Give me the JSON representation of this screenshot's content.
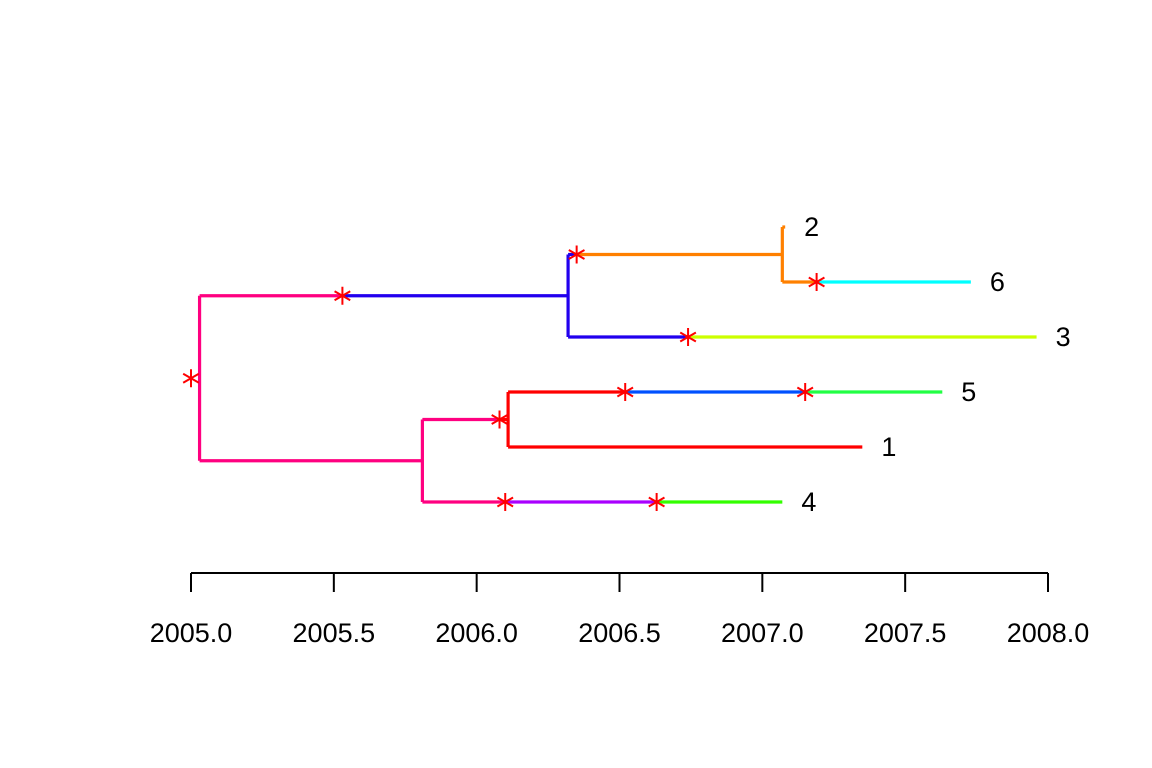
{
  "chart_data": {
    "type": "tree",
    "title": "",
    "xlabel": "",
    "ylabel": "",
    "xlim": [
      2005.0,
      2008.0
    ],
    "x_ticks": [
      2005.0,
      2005.5,
      2006.0,
      2006.5,
      2007.0,
      2007.5,
      2008.0
    ],
    "x_tick_labels": [
      "2005.0",
      "2005.5",
      "2006.0",
      "2006.5",
      "2007.0",
      "2007.5",
      "2008.0"
    ],
    "tips": [
      {
        "label": "2",
        "date": 2007.08
      },
      {
        "label": "6",
        "date": 2007.73
      },
      {
        "label": "3",
        "date": 2007.96
      },
      {
        "label": "5",
        "date": 2007.63
      },
      {
        "label": "1",
        "date": 2007.35
      },
      {
        "label": "4",
        "date": 2007.07
      }
    ],
    "internal_nodes": [
      {
        "id": "root",
        "date": 2005.03
      },
      {
        "id": "A",
        "date": 2006.32
      },
      {
        "id": "B",
        "date": 2007.07
      },
      {
        "id": "C",
        "date": 2005.81
      },
      {
        "id": "D",
        "date": 2006.11
      }
    ],
    "edges": [
      {
        "child": "A",
        "segments": [
          {
            "to": 2005.53,
            "color": "#ff0080"
          },
          {
            "to": 2006.32,
            "color": "#2200ee"
          }
        ]
      },
      {
        "child": "B",
        "segments": [
          {
            "to": 2006.35,
            "color": "#2200ee"
          },
          {
            "to": 2007.07,
            "color": "#ff8000"
          }
        ]
      },
      {
        "child": "2",
        "segments": [
          {
            "to": 2007.08,
            "color": "#ff8000"
          }
        ]
      },
      {
        "child": "6",
        "segments": [
          {
            "to": 2007.19,
            "color": "#ff8000"
          },
          {
            "to": 2007.73,
            "color": "#00ffff"
          }
        ]
      },
      {
        "child": "3",
        "segments": [
          {
            "to": 2006.74,
            "color": "#2200ee"
          },
          {
            "to": 2007.96,
            "color": "#ccff00"
          }
        ]
      },
      {
        "child": "C",
        "segments": [
          {
            "to": 2005.81,
            "color": "#ff0080"
          }
        ]
      },
      {
        "child": "D",
        "segments": [
          {
            "to": 2006.08,
            "color": "#ff0080"
          },
          {
            "to": 2006.11,
            "color": "#ff0000"
          }
        ]
      },
      {
        "child": "5",
        "segments": [
          {
            "to": 2006.52,
            "color": "#ff0000"
          },
          {
            "to": 2007.15,
            "color": "#0050ff"
          },
          {
            "to": 2007.63,
            "color": "#22ff44"
          }
        ]
      },
      {
        "child": "1",
        "segments": [
          {
            "to": 2007.35,
            "color": "#ff0000"
          }
        ]
      },
      {
        "child": "4",
        "segments": [
          {
            "to": 2006.1,
            "color": "#ff0080"
          },
          {
            "to": 2006.63,
            "color": "#aa00ff"
          },
          {
            "to": 2007.07,
            "color": "#33ff00"
          }
        ]
      }
    ],
    "event_markers": [
      {
        "date": 2005.0,
        "at": "root"
      },
      {
        "date": 2005.53,
        "on": "A"
      },
      {
        "date": 2006.35,
        "on": "B"
      },
      {
        "date": 2007.19,
        "on": "6"
      },
      {
        "date": 2006.74,
        "on": "3"
      },
      {
        "date": 2006.08,
        "on": "D"
      },
      {
        "date": 2006.52,
        "on": "5"
      },
      {
        "date": 2007.15,
        "on": "5"
      },
      {
        "date": 2006.1,
        "on": "4"
      },
      {
        "date": 2006.63,
        "on": "4"
      }
    ],
    "marker_color": "#ff0000",
    "marker_symbol": "asterisk",
    "axis_color": "#000000",
    "grid": false,
    "legend": "none"
  }
}
